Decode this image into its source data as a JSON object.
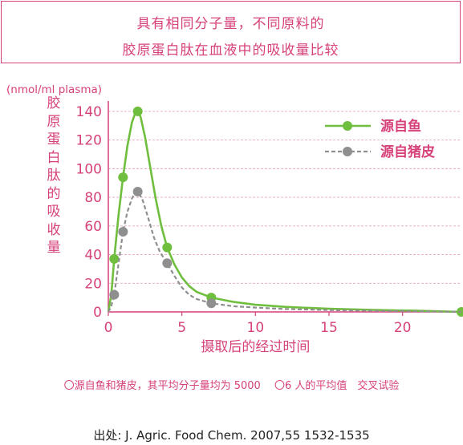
{
  "chart_data": {
    "type": "line",
    "title_line1": "具有相同分子量，不同原料的",
    "title_line2": "胶原蛋白肽在血液中的吸收量比较",
    "ylabel": "胶原蛋白肽的吸收量",
    "yunit": "(nmol/ml plasma)",
    "xlabel": "摄取后的经过时间",
    "xlim": [
      0,
      24
    ],
    "ylim": [
      0,
      145
    ],
    "xticks": [
      0,
      5,
      10,
      15,
      20
    ],
    "yticks": [
      0,
      20,
      40,
      60,
      80,
      100,
      120,
      140
    ],
    "grid": true,
    "legend_position": "top-right",
    "series": [
      {
        "name": "源自鱼",
        "color": "#6fbe3d",
        "line_style": "solid",
        "points": [
          [
            0,
            0
          ],
          [
            0.4,
            37
          ],
          [
            1,
            94
          ],
          [
            2,
            140
          ],
          [
            4,
            45
          ],
          [
            7,
            10
          ],
          [
            24,
            0
          ]
        ],
        "curve": [
          [
            0,
            0
          ],
          [
            0.2,
            12
          ],
          [
            0.4,
            37
          ],
          [
            0.7,
            68
          ],
          [
            1,
            94
          ],
          [
            1.3,
            116
          ],
          [
            1.6,
            132
          ],
          [
            1.8,
            138
          ],
          [
            2,
            140
          ],
          [
            2.2,
            136
          ],
          [
            2.5,
            122
          ],
          [
            2.8,
            104
          ],
          [
            3.2,
            80
          ],
          [
            3.6,
            60
          ],
          [
            4,
            45
          ],
          [
            4.5,
            33
          ],
          [
            5,
            24
          ],
          [
            5.5,
            18
          ],
          [
            6,
            14
          ],
          [
            7,
            10
          ],
          [
            8.5,
            7
          ],
          [
            10,
            5
          ],
          [
            12,
            3.5
          ],
          [
            15,
            2.2
          ],
          [
            18,
            1.4
          ],
          [
            21,
            0.8
          ],
          [
            24,
            0
          ]
        ]
      },
      {
        "name": "源自猪皮",
        "color": "#8f8f8f",
        "line_style": "dashed",
        "points": [
          [
            0,
            0
          ],
          [
            0.4,
            12
          ],
          [
            1,
            56
          ],
          [
            2,
            84
          ],
          [
            4,
            34
          ],
          [
            7,
            6
          ]
        ],
        "curve": [
          [
            0,
            0
          ],
          [
            0.2,
            4
          ],
          [
            0.4,
            12
          ],
          [
            0.7,
            34
          ],
          [
            1,
            56
          ],
          [
            1.3,
            70
          ],
          [
            1.6,
            79
          ],
          [
            1.8,
            83
          ],
          [
            2,
            84
          ],
          [
            2.3,
            79
          ],
          [
            2.7,
            66
          ],
          [
            3.1,
            52
          ],
          [
            3.5,
            42
          ],
          [
            4,
            34
          ],
          [
            4.5,
            25
          ],
          [
            5,
            17
          ],
          [
            5.5,
            12
          ],
          [
            6,
            9
          ],
          [
            7,
            6
          ],
          [
            8.5,
            4
          ],
          [
            10,
            3
          ],
          [
            12,
            2
          ],
          [
            15,
            1.3
          ],
          [
            18,
            0.8
          ],
          [
            21,
            0.4
          ],
          [
            24,
            0
          ]
        ]
      }
    ]
  },
  "footnote": "〇源自鱼和猪皮，其平均分子量均为 5000　 〇6 人的平均值　交叉试验",
  "source": "出处:  J. Agric. Food Chem. 2007,55 1532-1535"
}
